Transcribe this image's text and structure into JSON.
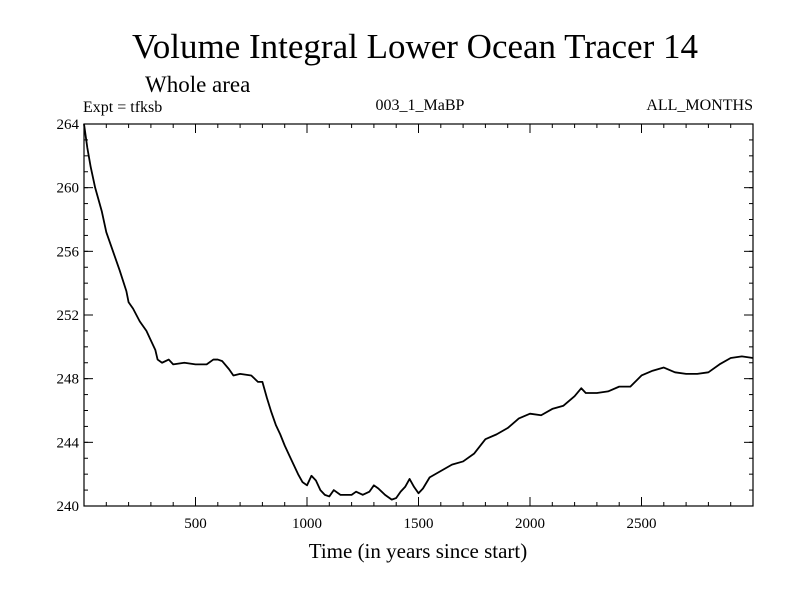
{
  "chart_data": {
    "type": "line",
    "title": "Volume Integral Lower Ocean Tracer 14",
    "subtitle": "Whole area",
    "experiment_label": "Expt = tfksb",
    "run_label": "003_1_MaBP",
    "months_label": "ALL_MONTHS",
    "xlabel": "Time (in years since start)",
    "ylabel": "",
    "xlim": [
      0,
      3000
    ],
    "ylim": [
      240,
      264
    ],
    "x_ticks": [
      500,
      1000,
      1500,
      2000,
      2500
    ],
    "x_minor_step": 100,
    "y_ticks": [
      240,
      244,
      248,
      252,
      256,
      260,
      264
    ],
    "y_minor_step": 1,
    "grid": false,
    "line_color": "#000000",
    "series": [
      {
        "name": "Volume Integral Lower Ocean Tracer 14",
        "points": [
          [
            0,
            264.0
          ],
          [
            15,
            262.5
          ],
          [
            30,
            261.3
          ],
          [
            50,
            260.0
          ],
          [
            80,
            258.5
          ],
          [
            100,
            257.2
          ],
          [
            130,
            256.0
          ],
          [
            160,
            254.8
          ],
          [
            190,
            253.5
          ],
          [
            200,
            252.8
          ],
          [
            220,
            252.4
          ],
          [
            250,
            251.6
          ],
          [
            280,
            251.0
          ],
          [
            300,
            250.4
          ],
          [
            320,
            249.8
          ],
          [
            330,
            249.2
          ],
          [
            350,
            249.0
          ],
          [
            380,
            249.2
          ],
          [
            400,
            248.9
          ],
          [
            450,
            249.0
          ],
          [
            500,
            248.9
          ],
          [
            550,
            248.9
          ],
          [
            580,
            249.2
          ],
          [
            600,
            249.2
          ],
          [
            620,
            249.1
          ],
          [
            650,
            248.6
          ],
          [
            670,
            248.2
          ],
          [
            700,
            248.3
          ],
          [
            750,
            248.2
          ],
          [
            780,
            247.8
          ],
          [
            800,
            247.8
          ],
          [
            820,
            246.8
          ],
          [
            840,
            245.9
          ],
          [
            860,
            245.1
          ],
          [
            880,
            244.5
          ],
          [
            900,
            243.8
          ],
          [
            920,
            243.2
          ],
          [
            940,
            242.6
          ],
          [
            960,
            242.0
          ],
          [
            980,
            241.5
          ],
          [
            1000,
            241.3
          ],
          [
            1020,
            241.9
          ],
          [
            1040,
            241.6
          ],
          [
            1060,
            241.0
          ],
          [
            1080,
            240.7
          ],
          [
            1100,
            240.6
          ],
          [
            1120,
            241.0
          ],
          [
            1150,
            240.7
          ],
          [
            1200,
            240.7
          ],
          [
            1220,
            240.9
          ],
          [
            1250,
            240.7
          ],
          [
            1280,
            240.9
          ],
          [
            1300,
            241.3
          ],
          [
            1320,
            241.1
          ],
          [
            1350,
            240.7
          ],
          [
            1380,
            240.4
          ],
          [
            1400,
            240.5
          ],
          [
            1420,
            240.9
          ],
          [
            1440,
            241.2
          ],
          [
            1460,
            241.7
          ],
          [
            1480,
            241.2
          ],
          [
            1500,
            240.8
          ],
          [
            1520,
            241.1
          ],
          [
            1550,
            241.8
          ],
          [
            1600,
            242.2
          ],
          [
            1650,
            242.6
          ],
          [
            1700,
            242.8
          ],
          [
            1750,
            243.3
          ],
          [
            1800,
            244.2
          ],
          [
            1850,
            244.5
          ],
          [
            1900,
            244.9
          ],
          [
            1950,
            245.5
          ],
          [
            2000,
            245.8
          ],
          [
            2050,
            245.7
          ],
          [
            2100,
            246.1
          ],
          [
            2150,
            246.3
          ],
          [
            2200,
            246.9
          ],
          [
            2230,
            247.4
          ],
          [
            2250,
            247.1
          ],
          [
            2300,
            247.1
          ],
          [
            2350,
            247.2
          ],
          [
            2400,
            247.5
          ],
          [
            2450,
            247.5
          ],
          [
            2500,
            248.2
          ],
          [
            2550,
            248.5
          ],
          [
            2600,
            248.7
          ],
          [
            2650,
            248.4
          ],
          [
            2700,
            248.3
          ],
          [
            2750,
            248.3
          ],
          [
            2800,
            248.4
          ],
          [
            2850,
            248.9
          ],
          [
            2900,
            249.3
          ],
          [
            2950,
            249.4
          ],
          [
            3000,
            249.3
          ]
        ]
      }
    ]
  }
}
